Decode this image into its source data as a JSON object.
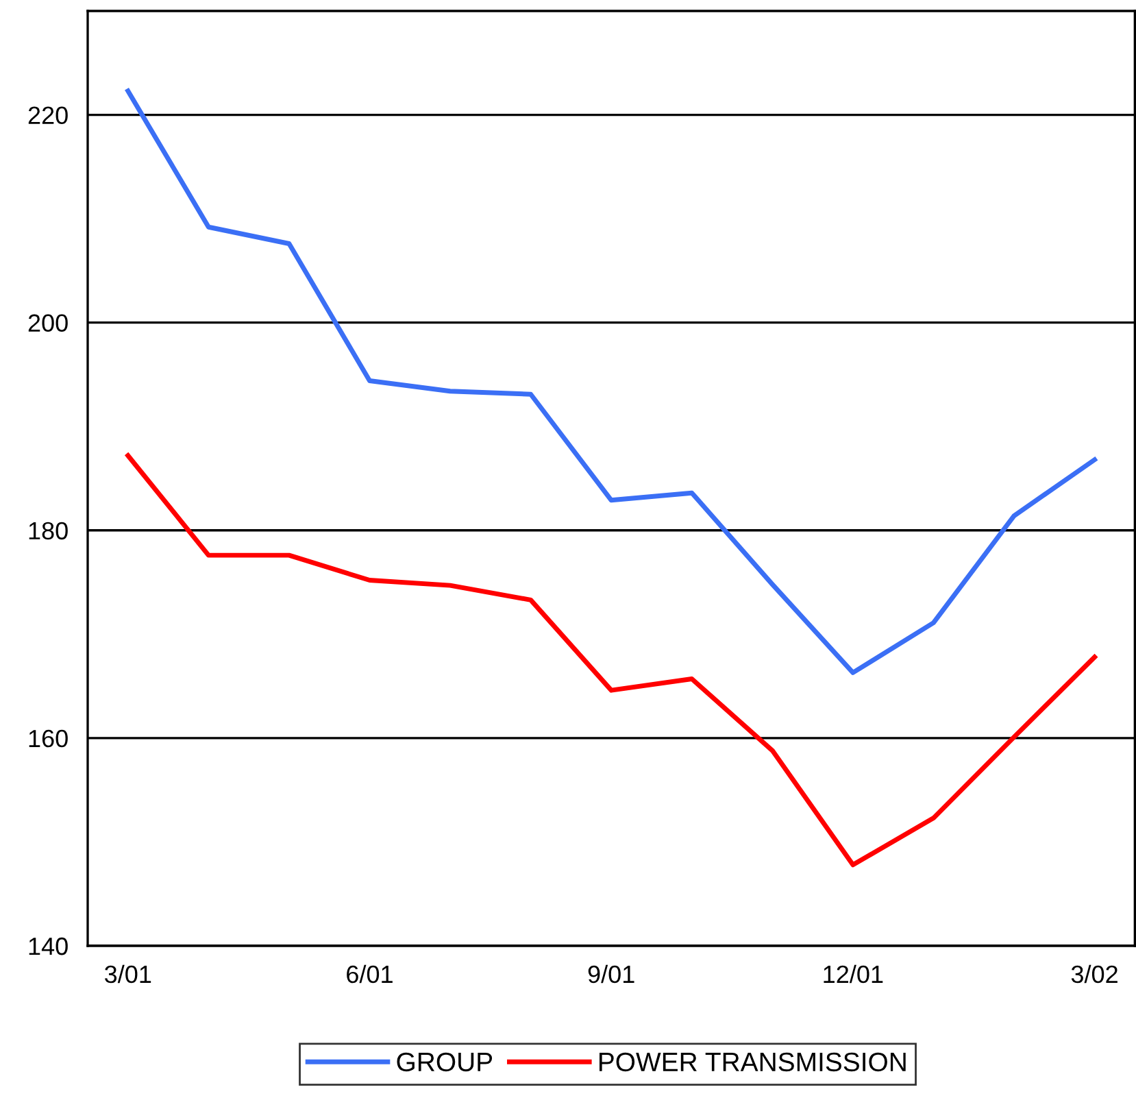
{
  "chart_data": {
    "type": "line",
    "categories": [
      "3/01",
      null,
      null,
      "6/01",
      null,
      null,
      "9/01",
      null,
      null,
      "12/01",
      null,
      null,
      "3/02"
    ],
    "series": [
      {
        "name": "GROUP",
        "color": "#3b6ff5",
        "values": [
          222.3,
          209.2,
          207.6,
          194.4,
          193.4,
          193.1,
          182.9,
          183.6,
          174.8,
          166.3,
          171.1,
          181.4,
          186.8
        ]
      },
      {
        "name": "POWER TRANSMISSION",
        "color": "#ff0000",
        "values": [
          187.2,
          177.6,
          177.6,
          175.2,
          174.7,
          173.3,
          164.6,
          165.7,
          158.8,
          147.8,
          152.3,
          160.1,
          167.8
        ]
      }
    ],
    "ylim": [
      140,
      230
    ],
    "yticks": [
      140,
      160,
      180,
      200,
      220
    ],
    "grid": "y",
    "legend": "bottom",
    "marker": "none",
    "line_style": "solid"
  }
}
